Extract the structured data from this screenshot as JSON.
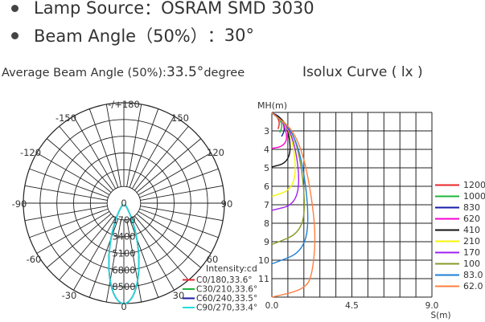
{
  "specs": [
    {
      "label": "Lamp Source",
      "sep": "：",
      "value": "OSRAM SMD 3030"
    },
    {
      "label": "Beam Angle（50%）",
      "sep": "：",
      "value": "30°"
    }
  ],
  "avg_beam": {
    "prefix": "Average Beam Angle (50%):",
    "value": "33.5°",
    "unit": "degree"
  },
  "isolux_title": "Isolux Curve ( lx )",
  "chart_data": [
    {
      "type": "polar",
      "angle_labels": [
        "-/+180",
        "150",
        "120",
        "90",
        "60",
        "30",
        "0",
        "-30",
        "-60",
        "-90",
        "-120",
        "-150"
      ],
      "radial_labels": [
        "0",
        "1700",
        "3400",
        "5100",
        "6800",
        "8500"
      ],
      "radial_max": 8500,
      "legend_title": "Intensity:cd",
      "series": [
        {
          "name": "C0/180,33.6°",
          "color": "#e8262b",
          "half_angle": 16.8,
          "peak": 8500
        },
        {
          "name": "C30/210,33.6°",
          "color": "#20b43b",
          "half_angle": 16.8,
          "peak": 8500
        },
        {
          "name": "C60/240,33.5°",
          "color": "#1a1aa8",
          "half_angle": 16.75,
          "peak": 8500
        },
        {
          "name": "C90/270,33.4°",
          "color": "#22dede",
          "half_angle": 16.7,
          "peak": 8500
        }
      ]
    },
    {
      "type": "line",
      "ylabel": "MH(m)",
      "xlabel": "S(m)",
      "x_ticks": [
        "0.0",
        "4.5",
        "9.0"
      ],
      "y_ticks": [
        "3",
        "4",
        "5",
        "6",
        "7",
        "8",
        "9",
        "10",
        "11"
      ],
      "xlim": [
        0,
        9
      ],
      "ylim": [
        2,
        12
      ],
      "series": [
        {
          "name": "1200",
          "color": "#e8262b",
          "points": [
            [
              0.0,
              2.02
            ],
            [
              0.25,
              2.15
            ],
            [
              0.45,
              2.55
            ],
            [
              0.35,
              2.9
            ]
          ]
        },
        {
          "name": "1000",
          "color": "#20b43b",
          "points": [
            [
              0.0,
              2.02
            ],
            [
              0.35,
              2.2
            ],
            [
              0.6,
              2.7
            ],
            [
              0.45,
              3.1
            ]
          ]
        },
        {
          "name": "830",
          "color": "#1a1aa8",
          "points": [
            [
              0.0,
              2.02
            ],
            [
              0.5,
              2.25
            ],
            [
              0.75,
              2.9
            ],
            [
              0.55,
              3.3
            ]
          ]
        },
        {
          "name": "620",
          "color": "#ff00cc",
          "points": [
            [
              0.0,
              2.02
            ],
            [
              0.6,
              2.4
            ],
            [
              0.9,
              3.4
            ],
            [
              0.6,
              3.85
            ],
            [
              0.0,
              3.95
            ]
          ]
        },
        {
          "name": "410",
          "color": "#111111",
          "points": [
            [
              0.0,
              2.02
            ],
            [
              0.8,
              2.5
            ],
            [
              1.1,
              4.0
            ],
            [
              0.8,
              4.75
            ],
            [
              0.0,
              4.95
            ]
          ]
        },
        {
          "name": "210",
          "color": "#f5f50a",
          "points": [
            [
              0.0,
              2.02
            ],
            [
              1.0,
              2.8
            ],
            [
              1.4,
              5.0
            ],
            [
              1.1,
              6.2
            ],
            [
              0.0,
              6.55
            ]
          ]
        },
        {
          "name": "170",
          "color": "#a020f0",
          "points": [
            [
              0.0,
              2.02
            ],
            [
              1.1,
              2.9
            ],
            [
              1.6,
              5.5
            ],
            [
              1.3,
              7.0
            ],
            [
              0.0,
              7.3
            ]
          ]
        },
        {
          "name": "100",
          "color": "#8a9a2a",
          "points": [
            [
              0.0,
              2.02
            ],
            [
              1.3,
              3.0
            ],
            [
              1.9,
              6.5
            ],
            [
              1.7,
              8.5
            ],
            [
              0.0,
              9.15
            ]
          ]
        },
        {
          "name": "83.0",
          "color": "#1e7fd6",
          "points": [
            [
              0.0,
              2.02
            ],
            [
              1.4,
              3.2
            ],
            [
              2.1,
              7.0
            ],
            [
              1.9,
              9.5
            ],
            [
              0.0,
              10.2
            ]
          ]
        },
        {
          "name": "62.0",
          "color": "#ff7f3f",
          "points": [
            [
              0.0,
              2.02
            ],
            [
              1.6,
              3.3
            ],
            [
              2.5,
              8.0
            ],
            [
              2.3,
              10.8
            ],
            [
              1.8,
              11.6
            ],
            [
              0.0,
              12.0
            ]
          ]
        }
      ]
    }
  ]
}
